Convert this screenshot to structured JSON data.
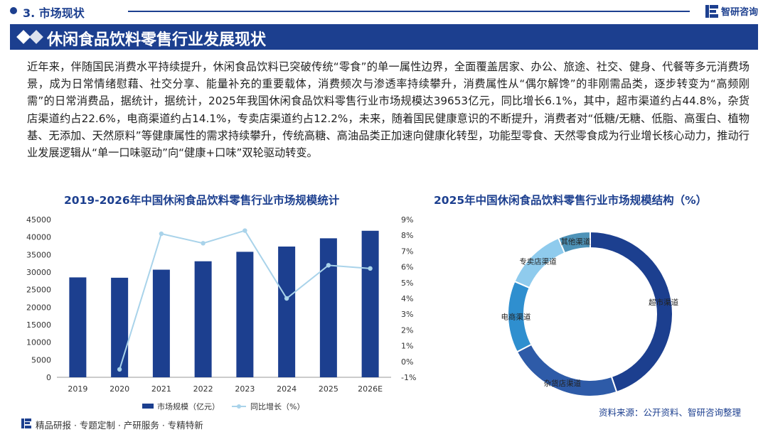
{
  "header": {
    "section": "3. 市场现状",
    "logo_text": "智研咨询",
    "banner_title": "休闲食品饮料零售行业发展现状"
  },
  "paragraph": "近年来，伴随国民消费水平持续提升，休闲食品饮料已突破传统“零食”的单一属性边界，全面覆盖居家、办公、旅途、社交、健身、代餐等多元消费场景，成为日常情绪慰藉、社交分享、能量补充的重要载体，消费频次与渗透率持续攀升，消费属性从“偶尔解馋”的非刚需品类，逐步转变为“高频刚需”的日常消费品，据统计，据统计，2025年我国休闲食品饮料零售行业市场规模达39653亿元，同比增长6.1%，其中，超市渠道约占44.8%，杂货店渠道约占22.6%，电商渠道约占14.1%，专卖店渠道约占12.2%，未来，随着国民健康意识的不断提升，消费者对“低糖/无糖、低脂、高蛋白、植物基、无添加、天然原料”等健康属性的需求持续攀升，传统高糖、高油品类正加速向健康化转型，功能型零食、天然零食成为行业增长核心动力，推动行业发展逻辑从“单一口味驱动”向“健康+口味”双轮驱动转变。",
  "chart_left_title": "2019-2026年中国休闲食品饮料零售行业市场规模统计",
  "chart_right_title": "2025年中国休闲食品饮料零售行业市场规模结构（%）",
  "footer": {
    "text": "精品研报 · 专题定制 · 产研服务 · 专精特新",
    "source": "资料来源：公开资料、智研咨询整理"
  },
  "colors": {
    "brand": "#1c3f8f",
    "bar": "#1c3f8f",
    "line": "#a9d3ea",
    "donut": [
      "#1c3f8f",
      "#2e5ba8",
      "#2f8fcf",
      "#8fcbed",
      "#4e93b8"
    ]
  },
  "chart_data": [
    {
      "type": "bar",
      "title": "2019-2026年中国休闲食品饮料零售行业市场规模统计",
      "categories": [
        "2019",
        "2020",
        "2021",
        "2022",
        "2023",
        "2024",
        "2025",
        "2026E"
      ],
      "series": [
        {
          "name": "市场规模（亿元）",
          "type": "bar",
          "axis": "left",
          "values": [
            28500,
            28400,
            30700,
            33100,
            35800,
            37300,
            39653,
            41800
          ]
        },
        {
          "name": "同比增长（%）",
          "type": "line",
          "axis": "right",
          "values": [
            null,
            -0.5,
            8.1,
            7.5,
            8.3,
            4.0,
            6.1,
            5.9
          ]
        }
      ],
      "ylim_left": [
        0,
        45000
      ],
      "yticks_left": [
        "0",
        "5000",
        "10000",
        "15000",
        "20000",
        "25000",
        "30000",
        "35000",
        "40000",
        "45000"
      ],
      "ylim_right": [
        -1,
        9
      ],
      "yticks_right": [
        "-1%",
        "0%",
        "1%",
        "2%",
        "3%",
        "4%",
        "5%",
        "6%",
        "7%",
        "8%",
        "9%"
      ],
      "legend": [
        "市场规模（亿元）",
        "同比增长（%）"
      ],
      "legend_position": "bottom"
    },
    {
      "type": "pie",
      "title": "2025年中国休闲食品饮料零售行业市场规模结构（%）",
      "categories": [
        "超市渠道",
        "杂货店渠道",
        "电商渠道",
        "专卖店渠道",
        "其他渠道"
      ],
      "values": [
        44.8,
        22.6,
        14.1,
        12.2,
        6.3
      ]
    }
  ]
}
